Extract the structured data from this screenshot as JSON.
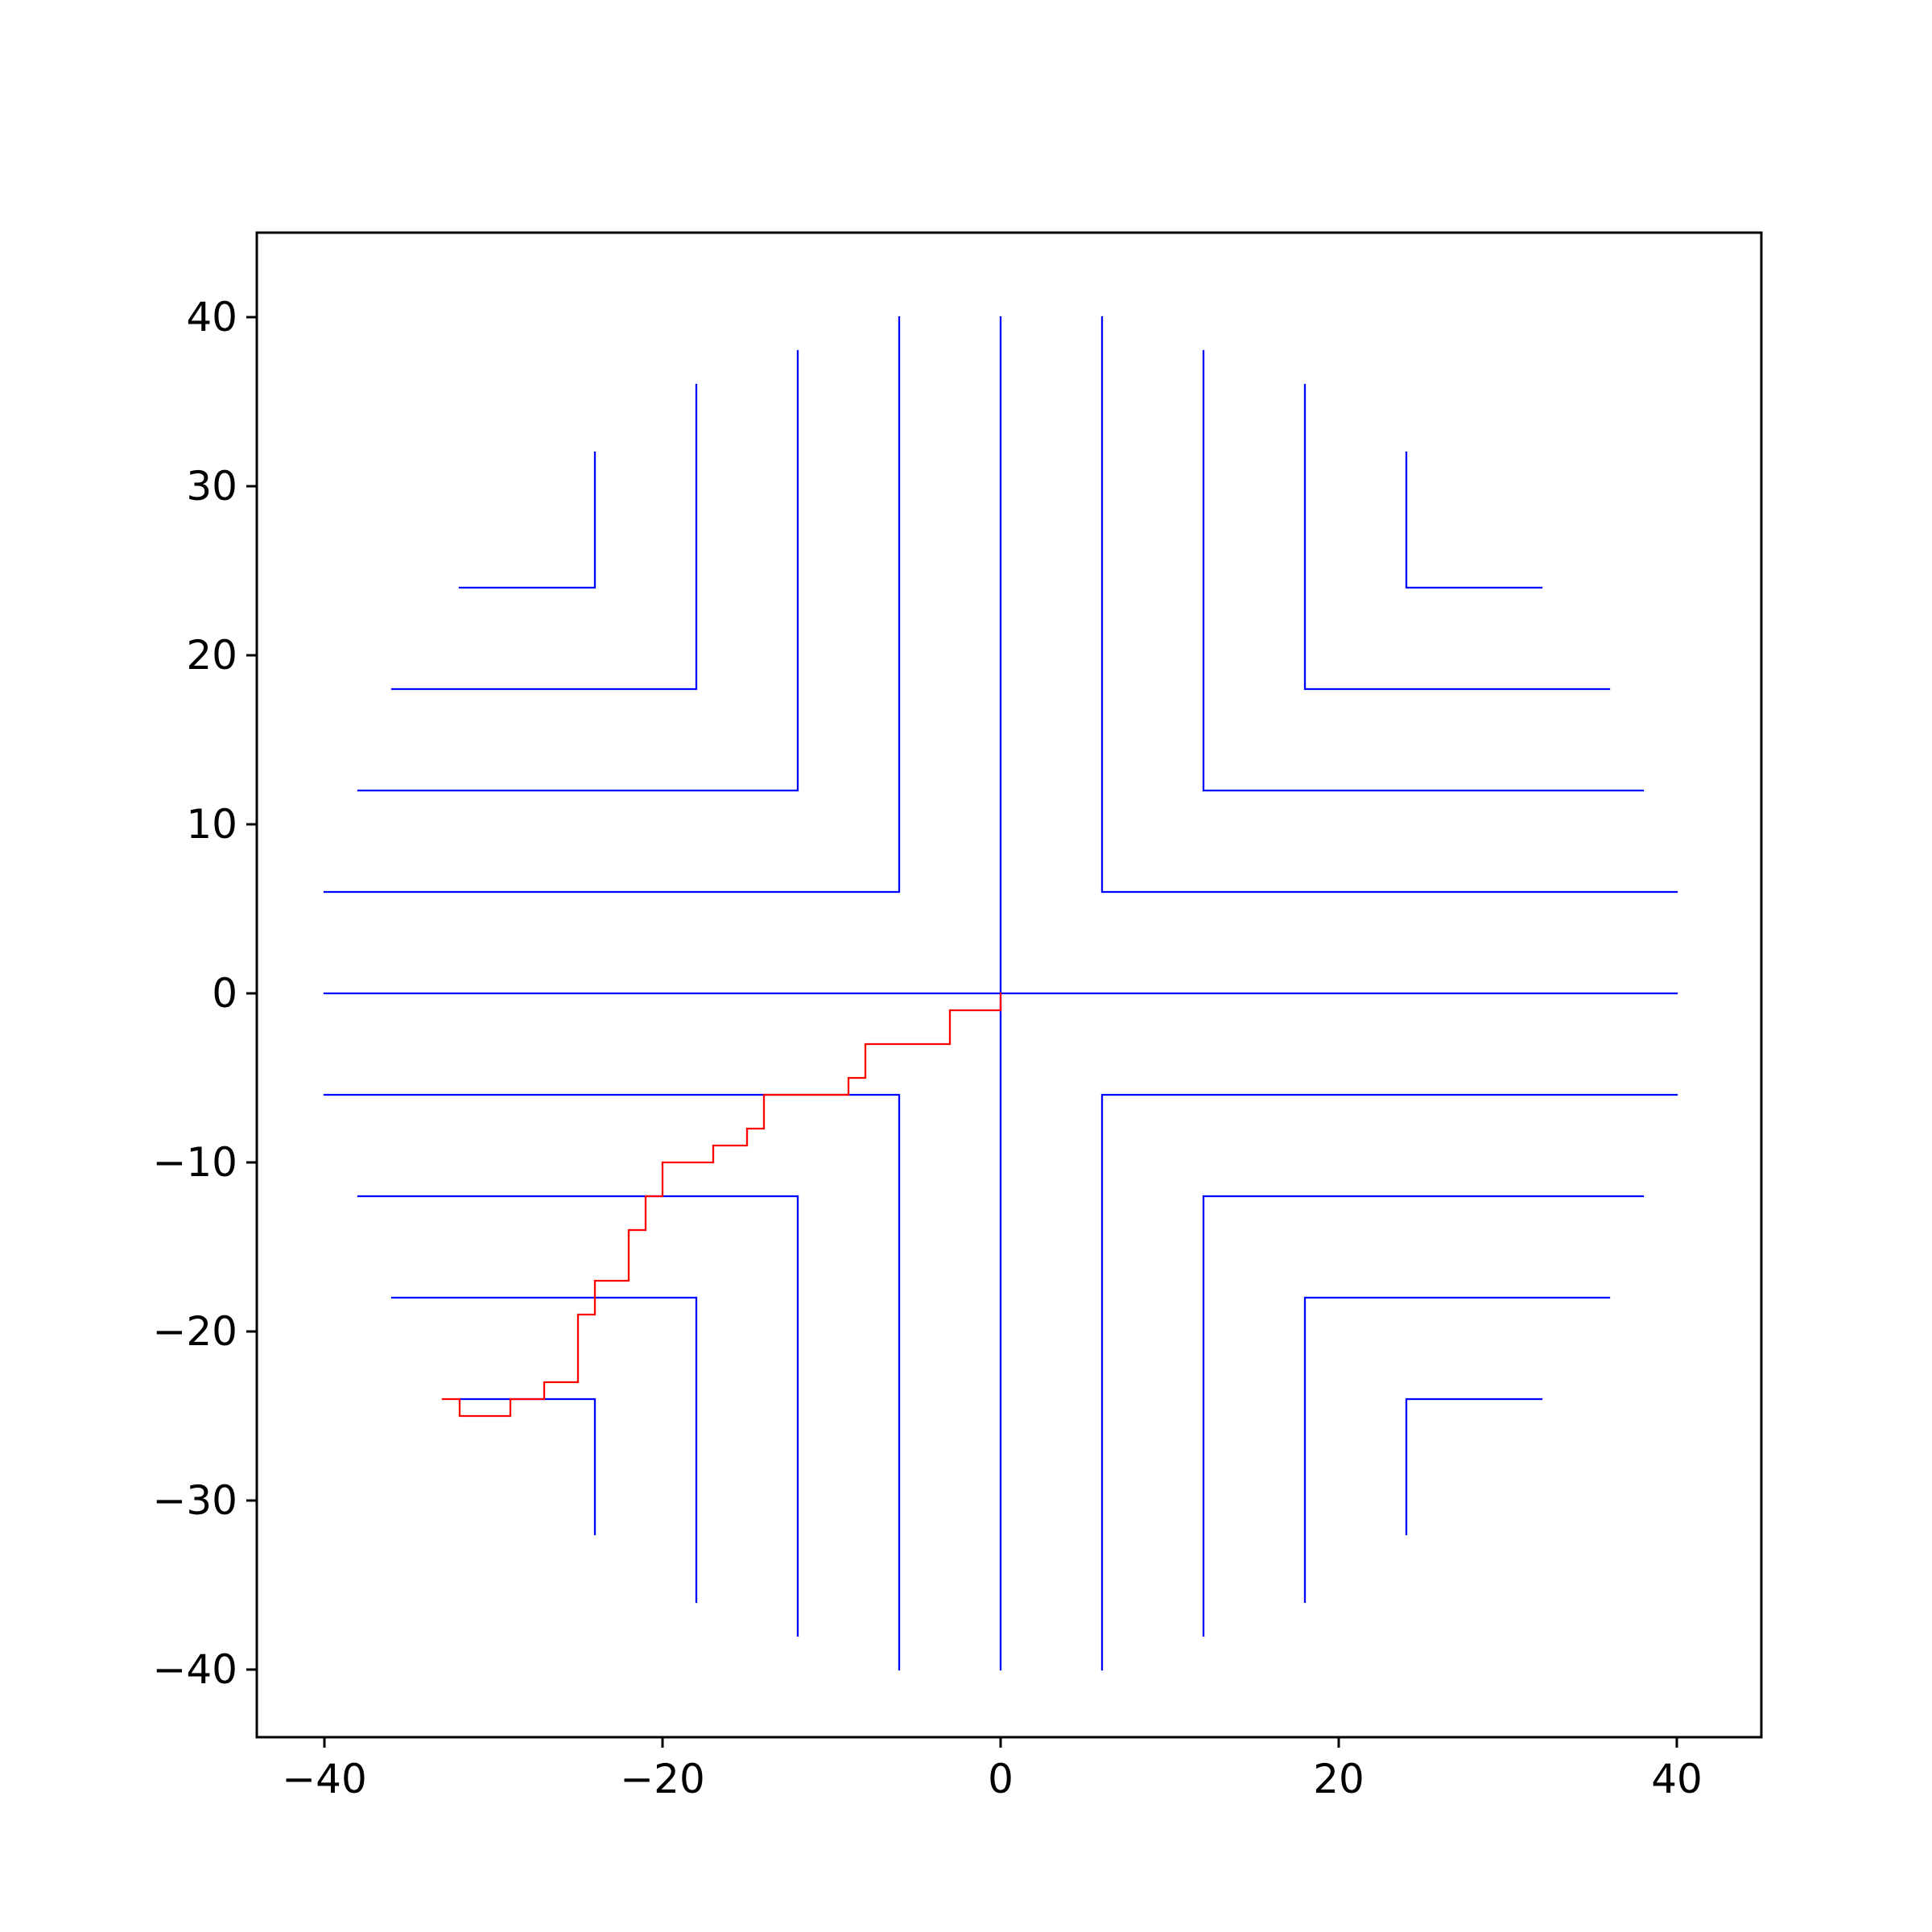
{
  "chart_data": {
    "type": "line",
    "xlim": [
      -44,
      45
    ],
    "ylim": [
      -44,
      45
    ],
    "xticks": [
      {
        "value": -40,
        "label": "−40"
      },
      {
        "value": -20,
        "label": "−20"
      },
      0,
      20,
      40
    ],
    "yticks": [
      {
        "value": -40,
        "label": "−40"
      },
      {
        "value": -30,
        "label": "−30"
      },
      {
        "value": -20,
        "label": "−20"
      },
      {
        "value": -10,
        "label": "−10"
      },
      0,
      10,
      20,
      30,
      40
    ],
    "series": [
      {
        "color": "#0000ff",
        "x": [
          24,
          32,
          null,
          18,
          36,
          null,
          12,
          38,
          null,
          6,
          40,
          null,
          0,
          40,
          null,
          6,
          40,
          null,
          12,
          38,
          null,
          18,
          36,
          null,
          24,
          32,
          null,
          -32,
          -24,
          null,
          -36,
          -18,
          null,
          -38,
          -12,
          null,
          -40,
          -6,
          null,
          -40,
          0,
          null,
          -40,
          -6,
          null,
          -38,
          -12,
          null,
          -36,
          -18,
          null,
          -32,
          -24,
          null,
          -24,
          -24,
          null,
          -18,
          -18,
          null,
          -12,
          -12,
          null,
          -6,
          -6,
          null,
          0,
          0,
          null,
          6,
          6,
          null,
          12,
          12,
          null,
          18,
          18,
          null,
          24,
          24,
          null,
          -24,
          -24,
          null,
          -18,
          -18,
          null,
          -12,
          -12,
          null,
          -6,
          -6,
          null,
          0,
          0,
          null,
          6,
          6,
          null,
          12,
          12,
          null,
          18,
          18,
          null,
          24,
          24
        ],
        "values": [
          -24,
          -24,
          null,
          -18,
          -18,
          null,
          -12,
          -12,
          null,
          -6,
          -6,
          null,
          0,
          0,
          null,
          6,
          6,
          null,
          12,
          12,
          null,
          18,
          18,
          null,
          24,
          24,
          null,
          -24,
          -24,
          null,
          -18,
          -18,
          null,
          -12,
          -12,
          null,
          -6,
          -6,
          null,
          0,
          0,
          null,
          6,
          6,
          null,
          12,
          12,
          null,
          18,
          18,
          null,
          24,
          24,
          null,
          24,
          32,
          null,
          18,
          36,
          null,
          12,
          38,
          null,
          6,
          40,
          null,
          0,
          40,
          null,
          6,
          40,
          null,
          12,
          38,
          null,
          18,
          36,
          null,
          24,
          32,
          null,
          -32,
          -24,
          null,
          -36,
          -18,
          null,
          -38,
          -12,
          null,
          -40,
          -6,
          null,
          -40,
          0,
          null,
          -40,
          -6,
          null,
          -38,
          -12,
          null,
          -36,
          -18,
          null,
          -32,
          -24
        ]
      },
      {
        "color": "#ff0000",
        "x": [
          0,
          0,
          -3,
          -3,
          -8,
          -8,
          -9,
          -9,
          -14,
          -14,
          -15,
          -15,
          -17,
          -17,
          -20,
          -20,
          -21,
          -21,
          -22,
          -22,
          -24,
          -24,
          -25,
          -25,
          -27,
          -27,
          -29,
          -29,
          -32,
          -32,
          -33
        ],
        "values": [
          0,
          -1,
          -1,
          -3,
          -3,
          -5,
          -5,
          -6,
          -6,
          -8,
          -8,
          -9,
          -9,
          -10,
          -10,
          -12,
          -12,
          -14,
          -14,
          -17,
          -17,
          -19,
          -19,
          -23,
          -23,
          -24,
          -24,
          -25,
          -25,
          -24,
          -24
        ]
      }
    ]
  }
}
